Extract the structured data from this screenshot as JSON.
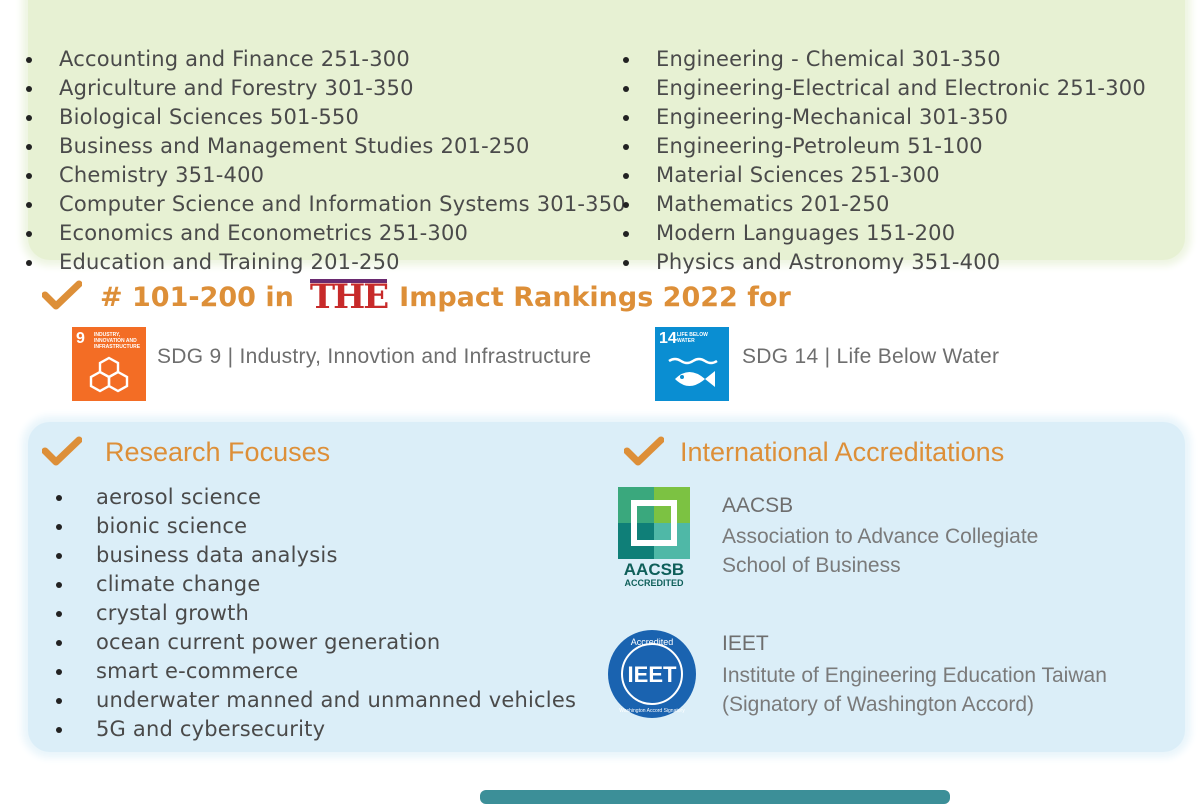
{
  "subjects": {
    "left": [
      "Accounting and Finance 251-300",
      "Agriculture and Forestry 301-350",
      "Biological Sciences 501-550",
      "Business and Management Studies 201-250",
      "Chemistry 351-400",
      "Computer Science and Information Systems 301-350",
      "Economics and Econometrics 251-300",
      "Education and Training 201-250"
    ],
    "right": [
      "Engineering - Chemical 301-350",
      "Engineering-Electrical and Electronic 251-300",
      "Engineering-Mechanical 301-350",
      "Engineering-Petroleum 51-100",
      "Material Sciences 251-300",
      "Mathematics 201-250",
      "Modern Languages 151-200",
      "Physics and Astronomy 351-400"
    ]
  },
  "impact": {
    "rank": "# 101-200  in",
    "logo_text": "THE",
    "tail": "Impact Rankings 2022 for",
    "sdgs": [
      {
        "number": "9",
        "caption": "INDUSTRY, INNOVATION AND INFRASTRUCTURE",
        "label": "SDG 9 | Industry, Innovtion and Infrastructure"
      },
      {
        "number": "14",
        "caption": "LIFE BELOW WATER",
        "label": "SDG 14 | Life Below Water"
      }
    ]
  },
  "research": {
    "heading": "Research Focuses",
    "items": [
      "aerosol science",
      "bionic science",
      "business data analysis",
      "climate change",
      "crystal growth",
      "ocean current power generation",
      "smart e-commerce",
      "underwater manned and unmanned vehicles",
      "5G and cybersecurity"
    ]
  },
  "accreditations": {
    "heading": "International Accreditations",
    "items": [
      {
        "name": "AACSB",
        "desc_line1": "Association to Advance Collegiate",
        "desc_line2": "School of Business",
        "logo_text": "AACSB",
        "logo_sub": "ACCREDITED"
      },
      {
        "name": "IEET",
        "desc_line1": "Institute of Engineering Education Taiwan",
        "desc_line2": "(Signatory of Washington Accord)",
        "logo_text": "IEET",
        "logo_ring_top": "Accredited",
        "logo_ring_bottom": "Washington Accord Signatory"
      }
    ]
  },
  "colors": {
    "accent": "#dd8f38",
    "green_panel": "#e7f1d3",
    "blue_panel": "#dbeef8",
    "sdg9": "#f36d25",
    "sdg14": "#0a8ed2"
  }
}
